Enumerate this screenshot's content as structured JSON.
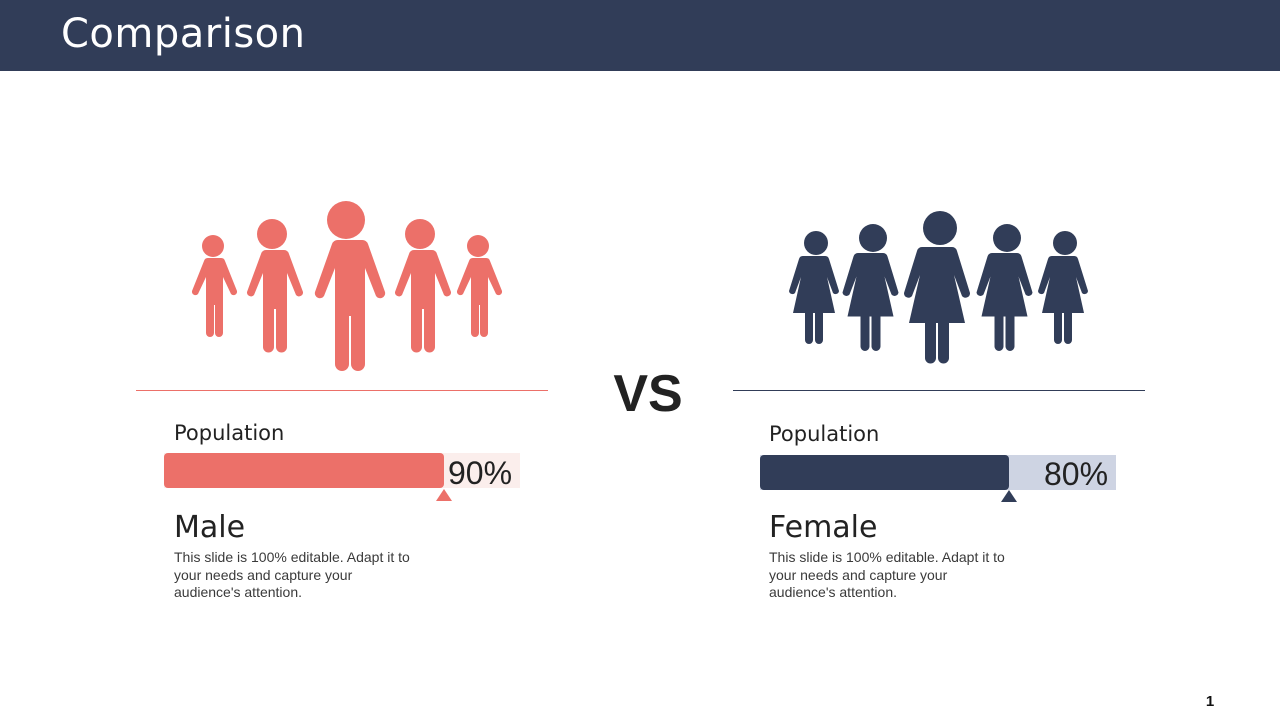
{
  "header": {
    "title": "Comparison"
  },
  "vs_label": "VS",
  "colors": {
    "header_bg": "#313d58",
    "male_accent": "#ec7069",
    "male_track": "#fbeeec",
    "female_accent": "#313d58",
    "female_track": "#ced4e3"
  },
  "male": {
    "icon": "male-group-icon",
    "population_label": "Population",
    "percent_text": "90%",
    "percent_value": 0.9,
    "title": "Male",
    "description": "This slide is 100% editable. Adapt it to your needs and capture your audience's attention."
  },
  "female": {
    "icon": "female-group-icon",
    "population_label": "Population",
    "percent_text": "80%",
    "percent_value": 0.8,
    "title": "Female",
    "description": "This slide is 100% editable. Adapt it to your needs and capture your audience's attention."
  },
  "page_number": "1"
}
